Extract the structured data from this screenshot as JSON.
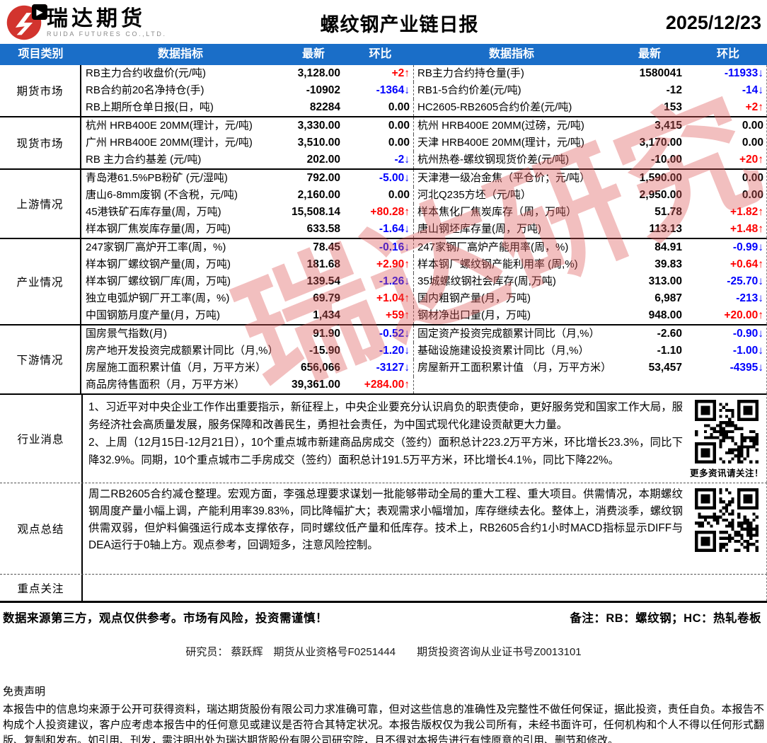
{
  "header": {
    "logo_cn": "瑞达期货",
    "logo_en": "RUIDA FUTURES CO.,LTD.",
    "title": "螺纹钢产业链日报",
    "date": "2025/12/23"
  },
  "colors": {
    "header_bg": "#1a6ec8",
    "up": "#fe0000",
    "down": "#0000fe",
    "logo_red": "#d2342e"
  },
  "watermark": "瑞达研究",
  "table": {
    "columns": [
      "项目类别",
      "数据指标",
      "最新",
      "环比",
      "数据指标",
      "最新",
      "环比"
    ],
    "sections": [
      {
        "category": "期货市场",
        "rows": [
          {
            "left": {
              "name": "RB主力合约收盘价(元/吨)",
              "value": "3,128.00",
              "change": "+2↑",
              "dir": "up"
            },
            "right": {
              "name": "RB主力合约持仓量(手)",
              "value": "1580041",
              "change": "-11933↓",
              "dir": "down"
            }
          },
          {
            "left": {
              "name": "RB合约前20名净持仓(手)",
              "value": "-10902",
              "change": "-1364↓",
              "dir": "down"
            },
            "right": {
              "name": "RB1-5合约价差(元/吨)",
              "value": "-12",
              "change": "-14↓",
              "dir": "down"
            }
          },
          {
            "left": {
              "name": "RB上期所仓单日报(日，吨)",
              "value": "82284",
              "change": "0.00",
              "dir": "flat"
            },
            "right": {
              "name": "HC2605-RB2605合约价差(元/吨)",
              "value": "153",
              "change": "+2↑",
              "dir": "up"
            }
          }
        ]
      },
      {
        "category": "现货市场",
        "rows": [
          {
            "left": {
              "name": "杭州 HRB400E 20MM(理计，元/吨)",
              "value": "3,330.00",
              "change": "0.00",
              "dir": "flat"
            },
            "right": {
              "name": "杭州 HRB400E 20MM(过磅，元/吨)",
              "value": "3,415",
              "change": "0.00",
              "dir": "flat"
            }
          },
          {
            "left": {
              "name": "广州 HRB400E 20MM(理计，元/吨)",
              "value": "3,510.00",
              "change": "0.00",
              "dir": "flat"
            },
            "right": {
              "name": "天津 HRB400E 20MM(理计，元/吨)",
              "value": "3,170.00",
              "change": "0.00",
              "dir": "flat"
            }
          },
          {
            "left": {
              "name": "RB 主力合约基差 (元/吨)",
              "value": "202.00",
              "change": "-2↓",
              "dir": "down"
            },
            "right": {
              "name": "杭州热卷-螺纹钢现货价差(元/吨)",
              "value": "-10.00",
              "change": "+20↑",
              "dir": "up"
            }
          }
        ]
      },
      {
        "category": "上游情况",
        "rows": [
          {
            "left": {
              "name": "青岛港61.5%PB粉矿 (元/湿吨)",
              "value": "792.00",
              "change": "-5.00↓",
              "dir": "down"
            },
            "right": {
              "name": "天津港一级冶金焦（平仓价；元/吨）",
              "value": "1,590.00",
              "change": "0.00",
              "dir": "flat"
            }
          },
          {
            "left": {
              "name": "唐山6-8mm废钢 (不含税，元/吨)",
              "value": "2,160.00",
              "change": "0.00",
              "dir": "flat"
            },
            "right": {
              "name": "河北Q235方坯（元/吨）",
              "value": "2,950.00",
              "change": "0.00",
              "dir": "flat"
            }
          },
          {
            "left": {
              "name": "45港铁矿石库存量(周，万吨)",
              "value": "15,508.14",
              "change": "+80.28↑",
              "dir": "up"
            },
            "right": {
              "name": "样本焦化厂焦炭库存（周，万吨）",
              "value": "51.78",
              "change": "+1.82↑",
              "dir": "up"
            }
          },
          {
            "left": {
              "name": "样本钢厂焦炭库存量(周，万吨)",
              "value": "633.58",
              "change": "-1.64↓",
              "dir": "down"
            },
            "right": {
              "name": "唐山钢坯库存量(周，万吨)",
              "value": "113.13",
              "change": "+1.48↑",
              "dir": "up"
            }
          }
        ]
      },
      {
        "category": "产业情况",
        "rows": [
          {
            "left": {
              "name": "247家钢厂高炉开工率(周，%)",
              "value": "78.45",
              "change": "-0.16↓",
              "dir": "down"
            },
            "right": {
              "name": "247家钢厂高炉产能用率(周，%)",
              "value": "84.91",
              "change": "-0.99↓",
              "dir": "down"
            }
          },
          {
            "left": {
              "name": "样本钢厂螺纹钢产量(周，万吨)",
              "value": "181.68",
              "change": "+2.90↑",
              "dir": "up"
            },
            "right": {
              "name": "样本钢厂螺纹钢产能利用率 (周,%)",
              "value": "39.83",
              "change": "+0.64↑",
              "dir": "up"
            }
          },
          {
            "left": {
              "name": "样本钢厂螺纹钢厂库(周，万吨)",
              "value": "139.54",
              "change": "-1.26↓",
              "dir": "down"
            },
            "right": {
              "name": "35城螺纹钢社会库存(周,万吨)",
              "value": "313.00",
              "change": "-25.70↓",
              "dir": "down"
            }
          },
          {
            "left": {
              "name": "独立电弧炉钢厂开工率(周，%)",
              "value": "69.79",
              "change": "+1.04↑",
              "dir": "up"
            },
            "right": {
              "name": "国内粗钢产量(月，万吨)",
              "value": "6,987",
              "change": "-213↓",
              "dir": "down"
            }
          },
          {
            "left": {
              "name": "中国钢筋月度产量(月，万吨)",
              "value": "1,434",
              "change": "+59↑",
              "dir": "up"
            },
            "right": {
              "name": "钢材净出口量(月，万吨)",
              "value": "948.00",
              "change": "+20.00↑",
              "dir": "up"
            }
          }
        ]
      },
      {
        "category": "下游情况",
        "rows": [
          {
            "left": {
              "name": "国房景气指数(月)",
              "value": "91.90",
              "change": "-0.52↓",
              "dir": "down"
            },
            "right": {
              "name": "固定资产投资完成额累计同比（月,%）",
              "value": "-2.60",
              "change": "-0.90↓",
              "dir": "down"
            }
          },
          {
            "left": {
              "name": "房产地开发投资完成额累计同比（月,%）",
              "value": "-15.90",
              "change": "-1.20↓",
              "dir": "down"
            },
            "right": {
              "name": "基础设施建设投资累计同比（月,%）",
              "value": "-1.10",
              "change": "-1.00↓",
              "dir": "down"
            }
          },
          {
            "left": {
              "name": "房屋施工面积累计值（月，万平方米）",
              "value": "656,066",
              "change": "-3127↓",
              "dir": "down"
            },
            "right": {
              "name": "房屋新开工面积累计值 （月，万平方米）",
              "value": "53,457",
              "change": "-4395↓",
              "dir": "down"
            }
          },
          {
            "left": {
              "name": "商品房待售面积（月，万平方米）",
              "value": "39,361.00",
              "change": "+284.00↑",
              "dir": "up"
            },
            "right": {
              "name": "",
              "value": "",
              "change": "",
              "dir": "flat"
            }
          }
        ]
      }
    ],
    "news": {
      "category": "行业消息",
      "paragraphs": [
        "1、习近平对中央企业工作作出重要指示，新征程上，中央企业要充分认识肩负的职责使命，更好服务党和国家工作大局，服务经济社会高质量发展，服务保障和改善民生，勇担社会责任，为中国式现代化建设贡献更大力量。",
        "2、上周（12月15日-12月21日），10个重点城市新建商品房成交（签约）面积总计223.2万平方米，环比增长23.3%，同比下降32.9%。同期，10个重点城市二手房成交（签约）面积总计191.5万平方米，环比增长4.1%，同比下降22%。"
      ],
      "qr_caption": "更多资讯请关注！"
    },
    "view": {
      "category": "观点总结",
      "paragraphs": [
        "周二RB2605合约减仓整理。宏观方面，李强总理要求谋划一批能够带动全局的重大工程、重大项目。供需情况，本期螺纹钢周度产量小幅上调，产能利用率39.83%，同比降幅扩大；表观需求小幅增加，库存继续去化。整体上，消费淡季，螺纹钢供需双弱，但炉料偏强运行成本支撑依存，同时螺纹低产量和低库存。技术上，RB2605合约1小时MACD指标显示DIFF与DEA运行于0轴上方。观点参考，回调短多，注意风险控制。"
      ]
    },
    "focus": {
      "category": "重点关注",
      "text": ""
    }
  },
  "footer": {
    "risk_note": "数据来源第三方，观点仅供参考。市场有风险，投资需谨慎！",
    "remark": "备注：RB：螺纹钢；HC：热轧卷板",
    "researcher": "研究员： 蔡跃辉　期货从业资格号F0251444　　期货投资咨询从业证书号Z0013101",
    "disclaimer_title": "免责声明",
    "disclaimer_body": "本报告中的信息均来源于公开可获得资料，瑞达期货股份有限公司力求准确可靠，但对这些信息的准确性及完整性不做任何保证，据此投资，责任自负。本报告不构成个人投资建议，客户应考虑本报告中的任何意见或建议是否符合其特定状况。本报告版权仅为我公司所有，未经书面许可，任何机构和个人不得以任何形式翻版、复制和发布。如引用、刊发，需注明出处为瑞达期货股份有限公司研究院，且不得对本报告进行有悖原意的引用、删节和修改。"
  }
}
